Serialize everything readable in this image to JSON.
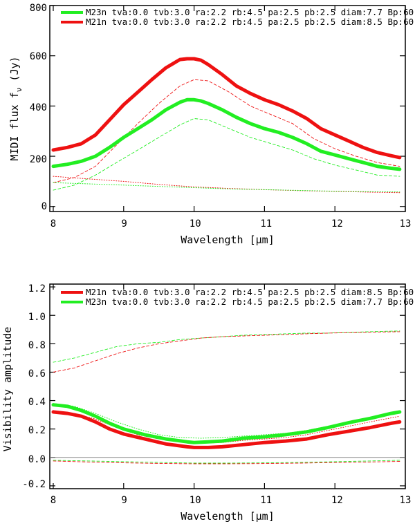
{
  "chart_data": [
    {
      "type": "line",
      "title": "",
      "xlabel": "Wavelength [μm]",
      "ylabel_main": "MIDI flux f",
      "ylabel_sub": "ν",
      "ylabel_unit": " (Jy)",
      "xlim": [
        8,
        13
      ],
      "ylim": [
        -20,
        800
      ],
      "xticks": [
        8,
        9,
        10,
        11,
        12,
        13
      ],
      "xtick_labels": [
        "8",
        "9",
        "10",
        "11",
        "12",
        "13"
      ],
      "yticks": [
        0,
        200,
        400,
        600,
        800
      ],
      "ytick_labels": [
        "0",
        "200",
        "400",
        "600",
        "800"
      ],
      "legend": [
        {
          "label": "M23n tva:0.0 tvb:3.0 ra:2.2 rb:4.5 pa:2.5 pb:2.5 diam:7.7 Bp:60",
          "color": "#22ee22"
        },
        {
          "label": "M21n tva:0.0 tvb:3.0 ra:2.2 rb:4.5 pa:2.5 pb:2.5 diam:8.5 Bp:60",
          "color": "#ee1111"
        }
      ],
      "series": [
        {
          "name": "M21n model",
          "color": "#ee1111",
          "style": "thick",
          "x": [
            8.0,
            8.2,
            8.4,
            8.6,
            8.8,
            9.0,
            9.2,
            9.4,
            9.6,
            9.8,
            9.9,
            10.0,
            10.1,
            10.2,
            10.4,
            10.6,
            10.8,
            11.0,
            11.2,
            11.4,
            11.6,
            11.8,
            12.0,
            12.2,
            12.4,
            12.6,
            12.8,
            12.92
          ],
          "y": [
            225,
            235,
            250,
            285,
            345,
            405,
            455,
            505,
            552,
            585,
            588,
            588,
            582,
            565,
            525,
            480,
            450,
            425,
            405,
            380,
            350,
            310,
            285,
            260,
            235,
            215,
            202,
            195
          ]
        },
        {
          "name": "M23n model",
          "color": "#22ee22",
          "style": "thick",
          "x": [
            8.0,
            8.2,
            8.4,
            8.6,
            8.8,
            9.0,
            9.2,
            9.4,
            9.6,
            9.8,
            9.9,
            10.0,
            10.1,
            10.2,
            10.4,
            10.6,
            10.8,
            11.0,
            11.2,
            11.4,
            11.6,
            11.8,
            12.0,
            12.2,
            12.4,
            12.6,
            12.8,
            12.92
          ],
          "y": [
            160,
            168,
            180,
            200,
            235,
            275,
            310,
            345,
            385,
            415,
            425,
            425,
            420,
            410,
            385,
            355,
            330,
            310,
            295,
            275,
            250,
            220,
            205,
            190,
            175,
            160,
            152,
            148
          ]
        },
        {
          "name": "M21n dashed",
          "color": "#ee1111",
          "style": "dashed",
          "x": [
            8.0,
            8.3,
            8.6,
            8.9,
            9.2,
            9.5,
            9.8,
            10.0,
            10.2,
            10.5,
            10.8,
            11.1,
            11.4,
            11.7,
            12.0,
            12.3,
            12.6,
            12.92
          ],
          "y": [
            95,
            115,
            160,
            245,
            330,
            410,
            480,
            505,
            500,
            455,
            400,
            365,
            330,
            270,
            230,
            200,
            175,
            160
          ]
        },
        {
          "name": "M23n dashed",
          "color": "#22ee22",
          "style": "dashed",
          "x": [
            8.0,
            8.3,
            8.6,
            8.9,
            9.2,
            9.5,
            9.8,
            10.0,
            10.2,
            10.5,
            10.8,
            11.1,
            11.4,
            11.7,
            12.0,
            12.3,
            12.6,
            12.92
          ],
          "y": [
            65,
            85,
            125,
            175,
            225,
            275,
            325,
            350,
            345,
            310,
            275,
            250,
            225,
            190,
            165,
            145,
            125,
            120
          ]
        },
        {
          "name": "M21n dotted",
          "color": "#ee1111",
          "style": "dotted",
          "x": [
            8.0,
            8.5,
            9.0,
            9.5,
            10.0,
            10.5,
            11.0,
            11.5,
            12.0,
            12.5,
            12.92
          ],
          "y": [
            120,
            110,
            100,
            88,
            78,
            72,
            67,
            63,
            60,
            57,
            55
          ]
        },
        {
          "name": "M23n dotted",
          "color": "#22ee22",
          "style": "dotted",
          "x": [
            8.0,
            8.5,
            9.0,
            9.5,
            10.0,
            10.5,
            11.0,
            11.5,
            12.0,
            12.5,
            12.92
          ],
          "y": [
            95,
            90,
            85,
            80,
            75,
            70,
            67,
            64,
            61,
            59,
            58
          ]
        }
      ]
    },
    {
      "type": "line",
      "title": "",
      "xlabel": "Wavelength [μm]",
      "ylabel": "Visibility amplitude",
      "xlim": [
        8,
        13
      ],
      "ylim": [
        -0.22,
        1.22
      ],
      "xticks": [
        8,
        9,
        10,
        11,
        12,
        13
      ],
      "xtick_labels": [
        "8",
        "9",
        "10",
        "11",
        "12",
        "13"
      ],
      "yticks": [
        -0.2,
        0.0,
        0.2,
        0.4,
        0.6,
        0.8,
        1.0,
        1.2
      ],
      "ytick_labels": [
        "-0.2",
        "0.0",
        "0.2",
        "0.4",
        "0.6",
        "0.8",
        "1.0",
        "1.2"
      ],
      "zero_line": 0.0,
      "legend": [
        {
          "label": "M21n tva:0.0 tvb:3.0 ra:2.2 rb:4.5 pa:2.5 pb:2.5 diam:8.5 Bp:60",
          "color": "#ee1111"
        },
        {
          "label": "M23n tva:0.0 tvb:3.0 ra:2.2 rb:4.5 pa:2.5 pb:2.5 diam:7.7 Bp:60",
          "color": "#22ee22"
        }
      ],
      "series": [
        {
          "name": "M23n model",
          "color": "#22ee22",
          "style": "thick",
          "x": [
            8.0,
            8.2,
            8.4,
            8.6,
            8.8,
            9.0,
            9.3,
            9.6,
            9.9,
            10.0,
            10.2,
            10.4,
            10.7,
            11.0,
            11.3,
            11.6,
            11.9,
            12.2,
            12.5,
            12.8,
            12.92
          ],
          "y": [
            0.37,
            0.36,
            0.33,
            0.29,
            0.24,
            0.2,
            0.16,
            0.13,
            0.11,
            0.105,
            0.11,
            0.115,
            0.135,
            0.145,
            0.16,
            0.18,
            0.21,
            0.245,
            0.275,
            0.31,
            0.32
          ]
        },
        {
          "name": "M21n model",
          "color": "#ee1111",
          "style": "thick",
          "x": [
            8.0,
            8.2,
            8.4,
            8.6,
            8.8,
            9.0,
            9.3,
            9.6,
            9.9,
            10.0,
            10.2,
            10.4,
            10.7,
            11.0,
            11.3,
            11.6,
            11.9,
            12.2,
            12.5,
            12.8,
            12.92
          ],
          "y": [
            0.32,
            0.31,
            0.29,
            0.25,
            0.2,
            0.165,
            0.13,
            0.095,
            0.075,
            0.07,
            0.07,
            0.075,
            0.09,
            0.105,
            0.115,
            0.13,
            0.16,
            0.185,
            0.21,
            0.24,
            0.25
          ]
        },
        {
          "name": "M23n dashed",
          "color": "#22ee22",
          "style": "dashed",
          "x": [
            8.0,
            8.3,
            8.6,
            8.9,
            9.2,
            9.5,
            9.8,
            10.1,
            10.4,
            10.7,
            11.0,
            11.3,
            11.6,
            11.9,
            12.2,
            12.5,
            12.92
          ],
          "y": [
            0.67,
            0.7,
            0.74,
            0.78,
            0.8,
            0.81,
            0.83,
            0.84,
            0.85,
            0.86,
            0.865,
            0.87,
            0.875,
            0.875,
            0.88,
            0.885,
            0.89
          ]
        },
        {
          "name": "M21n dashed",
          "color": "#ee1111",
          "style": "dashed",
          "x": [
            8.0,
            8.3,
            8.6,
            8.9,
            9.2,
            9.5,
            9.8,
            10.1,
            10.4,
            10.7,
            11.0,
            11.3,
            11.6,
            11.9,
            12.2,
            12.5,
            12.92
          ],
          "y": [
            0.6,
            0.63,
            0.68,
            0.73,
            0.77,
            0.8,
            0.82,
            0.84,
            0.85,
            0.855,
            0.86,
            0.865,
            0.87,
            0.875,
            0.878,
            0.882,
            0.885
          ]
        },
        {
          "name": "M23n dotted",
          "color": "#22ee22",
          "style": "dotted",
          "x": [
            8.0,
            8.3,
            8.6,
            8.9,
            9.2,
            9.5,
            9.8,
            10.1,
            10.4,
            10.7,
            11.0,
            11.3,
            11.6,
            11.9,
            12.2,
            12.5,
            12.92
          ],
          "y": [
            0.38,
            0.36,
            0.31,
            0.25,
            0.2,
            0.16,
            0.14,
            0.135,
            0.14,
            0.15,
            0.16,
            0.17,
            0.19,
            0.22,
            0.25,
            0.28,
            0.32
          ]
        },
        {
          "name": "M21n dotted",
          "color": "#ee1111",
          "style": "dotted",
          "x": [
            8.0,
            8.3,
            8.6,
            8.9,
            9.2,
            9.5,
            9.8,
            10.1,
            10.4,
            10.7,
            11.0,
            11.3,
            11.6,
            11.9,
            12.2,
            12.5,
            12.92
          ],
          "y": [
            0.33,
            0.31,
            0.27,
            0.21,
            0.16,
            0.13,
            0.11,
            0.1,
            0.105,
            0.12,
            0.13,
            0.14,
            0.16,
            0.19,
            0.22,
            0.25,
            0.29
          ]
        },
        {
          "name": "M23n phase dashed",
          "color": "#22ee22",
          "style": "dashed",
          "x": [
            8.0,
            8.5,
            9.0,
            9.5,
            10.0,
            10.5,
            11.0,
            11.5,
            12.0,
            12.5,
            12.92
          ],
          "y": [
            -0.02,
            -0.025,
            -0.03,
            -0.035,
            -0.04,
            -0.04,
            -0.038,
            -0.035,
            -0.03,
            -0.025,
            -0.02
          ]
        },
        {
          "name": "M21n phase dashed",
          "color": "#ee1111",
          "style": "dashed",
          "x": [
            8.0,
            8.5,
            9.0,
            9.5,
            10.0,
            10.5,
            11.0,
            11.5,
            12.0,
            12.5,
            12.92
          ],
          "y": [
            -0.025,
            -0.032,
            -0.038,
            -0.042,
            -0.045,
            -0.045,
            -0.043,
            -0.04,
            -0.036,
            -0.032,
            -0.028
          ]
        }
      ]
    }
  ]
}
